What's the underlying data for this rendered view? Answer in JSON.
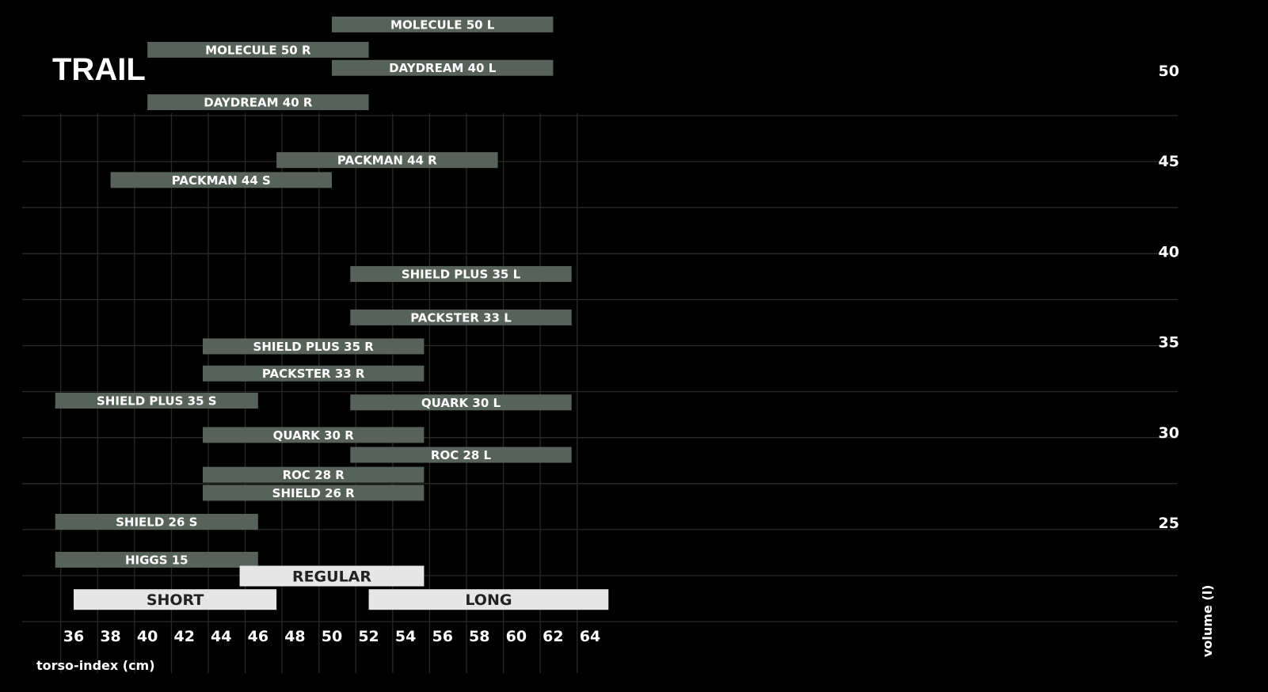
{
  "chart_data": {
    "type": "bar",
    "orientation": "horizontal-range",
    "title": "TRAIL",
    "xlabel": "torso-index (cm)",
    "ylabel": "volume (l)",
    "xlim": [
      35,
      65
    ],
    "ylim": [
      20,
      53
    ],
    "x_ticks": [
      36,
      38,
      40,
      42,
      44,
      46,
      48,
      50,
      52,
      54,
      56,
      58,
      60,
      62,
      64
    ],
    "y_ticks": [
      25,
      30,
      35,
      40,
      45,
      50
    ],
    "grid": true,
    "colors": {
      "background": "#000000",
      "bar": "#56625a",
      "category_bar": "#e6e6e6",
      "grid": "#2a2a2a",
      "text": "#ffffff",
      "category_text": "#222222"
    },
    "bars": [
      {
        "label": "MOLECULE 50 L",
        "x_start": 50,
        "x_end": 62,
        "y": 52.5
      },
      {
        "label": "MOLECULE 50 R",
        "x_start": 40,
        "x_end": 52,
        "y": 51.1
      },
      {
        "label": "DAYDREAM 40 L",
        "x_start": 50,
        "x_end": 62,
        "y": 50.1
      },
      {
        "label": "DAYDREAM 40 R",
        "x_start": 40,
        "x_end": 52,
        "y": 48.2
      },
      {
        "label": "PACKMAN 44 R",
        "x_start": 47,
        "x_end": 59,
        "y": 45.0
      },
      {
        "label": "PACKMAN 44 S",
        "x_start": 38,
        "x_end": 50,
        "y": 43.9
      },
      {
        "label": "SHIELD PLUS 35 L",
        "x_start": 51,
        "x_end": 63,
        "y": 38.7
      },
      {
        "label": "PACKSTER 33 L",
        "x_start": 51,
        "x_end": 63,
        "y": 36.3
      },
      {
        "label": "SHIELD PLUS 35 R",
        "x_start": 43,
        "x_end": 55,
        "y": 34.7
      },
      {
        "label": "PACKSTER 33 R",
        "x_start": 43,
        "x_end": 55,
        "y": 33.2
      },
      {
        "label": "SHIELD PLUS 35 S",
        "x_start": 35,
        "x_end": 46,
        "y": 31.7
      },
      {
        "label": "QUARK 30 L",
        "x_start": 51,
        "x_end": 63,
        "y": 31.6
      },
      {
        "label": "QUARK 30 R",
        "x_start": 43,
        "x_end": 55,
        "y": 29.8
      },
      {
        "label": "ROC 28 L",
        "x_start": 51,
        "x_end": 63,
        "y": 28.7
      },
      {
        "label": "ROC 28 R",
        "x_start": 43,
        "x_end": 55,
        "y": 27.6
      },
      {
        "label": "SHIELD 26 R",
        "x_start": 43,
        "x_end": 55,
        "y": 26.6
      },
      {
        "label": "SHIELD 26 S",
        "x_start": 35,
        "x_end": 46,
        "y": 25.0
      },
      {
        "label": "HIGGS 15",
        "x_start": 35,
        "x_end": 46,
        "y": 22.9
      }
    ],
    "categories": [
      {
        "label": "REGULAR",
        "x_start": 45,
        "x_end": 55,
        "y": 22.0
      },
      {
        "label": "SHORT",
        "x_start": 36,
        "x_end": 47,
        "y": 20.7
      },
      {
        "label": "LONG",
        "x_start": 52,
        "x_end": 65,
        "y": 20.7
      }
    ]
  }
}
